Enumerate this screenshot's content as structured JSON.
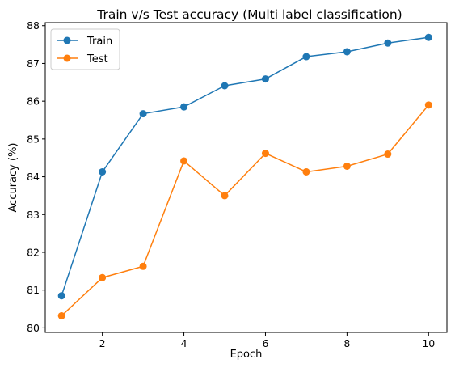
{
  "chart_data": {
    "type": "line",
    "title": "Train v/s Test accuracy (Multi label classification)",
    "xlabel": "Epoch",
    "ylabel": "Accuracy (%)",
    "x": [
      1,
      2,
      3,
      4,
      5,
      6,
      7,
      8,
      9,
      10
    ],
    "xlim": [
      0.6,
      10.45
    ],
    "ylim": [
      79.88,
      88.08
    ],
    "xticks": [
      2,
      4,
      6,
      8,
      10
    ],
    "yticks": [
      80,
      81,
      82,
      83,
      84,
      85,
      86,
      87,
      88
    ],
    "grid": false,
    "legend_position": "top-left",
    "series": [
      {
        "name": "Train",
        "color": "#1f77b4",
        "marker": "circle",
        "values": [
          80.85,
          84.13,
          85.67,
          85.85,
          86.41,
          86.59,
          87.18,
          87.31,
          87.54,
          87.69
        ]
      },
      {
        "name": "Test",
        "color": "#ff7f0e",
        "marker": "circle",
        "values": [
          80.32,
          81.33,
          81.63,
          84.42,
          83.5,
          84.62,
          84.13,
          84.28,
          84.6,
          85.9
        ]
      }
    ]
  }
}
